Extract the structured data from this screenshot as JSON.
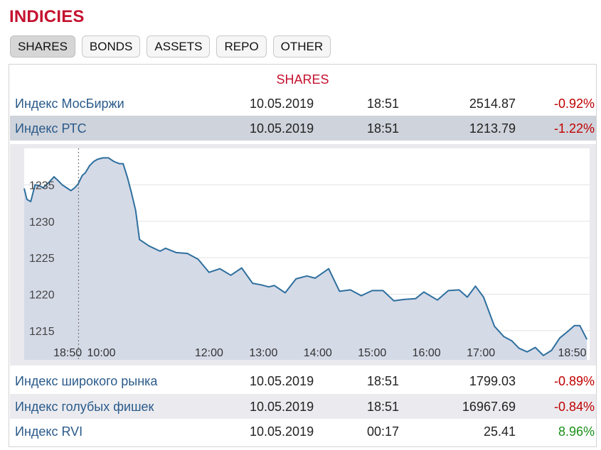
{
  "page": {
    "title": "INDICIES"
  },
  "tabs": [
    {
      "label": "SHARES",
      "active": true
    },
    {
      "label": "BONDS",
      "active": false
    },
    {
      "label": "ASSETS",
      "active": false
    },
    {
      "label": "REPO",
      "active": false
    },
    {
      "label": "OTHER",
      "active": false
    }
  ],
  "section": {
    "title": "SHARES"
  },
  "rows_top": [
    {
      "name": "Индекс МосБиржи",
      "date": "10.05.2019",
      "time": "18:51",
      "value": "2514.87",
      "change": "-0.92%",
      "sign": "neg"
    },
    {
      "name": "Индекс РТС",
      "date": "10.05.2019",
      "time": "18:51",
      "value": "1213.79",
      "change": "-1.22%",
      "sign": "neg"
    }
  ],
  "rows_bottom": [
    {
      "name": "Индекс широкого рынка",
      "date": "10.05.2019",
      "time": "18:51",
      "value": "1799.03",
      "change": "-0.89%",
      "sign": "neg"
    },
    {
      "name": "Индекс голубых фишек",
      "date": "10.05.2019",
      "time": "18:51",
      "value": "16967.69",
      "change": "-0.84%",
      "sign": "neg"
    },
    {
      "name": "Индекс RVI",
      "date": "10.05.2019",
      "time": "00:17",
      "value": "25.41",
      "change": "8.96%",
      "sign": "pos"
    }
  ],
  "colors": {
    "accent": "#c4122f",
    "line": "#2e6f9e",
    "area": "#d3d8e6",
    "negative": "#c00000",
    "positive": "#1a8f1a"
  },
  "chart_data": {
    "type": "area",
    "title": "",
    "xlabel": "",
    "ylabel": "",
    "ylim": [
      1211,
      1240
    ],
    "grid": true,
    "y_ticks": [
      1215,
      1220,
      1225,
      1230,
      1235
    ],
    "x_ticks": [
      {
        "label": "18:50",
        "x": 0.8
      },
      {
        "label": "10:00",
        "x": 1.42
      },
      {
        "label": "12:00",
        "x": 3.4
      },
      {
        "label": "13:00",
        "x": 4.4
      },
      {
        "label": "14:00",
        "x": 5.4
      },
      {
        "label": "15:00",
        "x": 6.4
      },
      {
        "label": "16:00",
        "x": 7.4
      },
      {
        "label": "17:00",
        "x": 8.4
      },
      {
        "label": "18:50",
        "x": 10.08
      }
    ],
    "session_marker_x": 1.0,
    "series": [
      {
        "x": [
          0,
          0.05,
          0.12,
          0.2,
          0.27,
          0.35,
          0.45,
          0.55,
          0.62,
          0.7,
          0.78,
          0.86,
          0.93,
          0.99,
          1.03,
          1.07,
          1.12,
          1.17,
          1.2,
          1.28,
          1.35,
          1.45,
          1.55,
          1.65,
          1.75,
          1.82,
          1.9,
          1.97,
          2.05,
          2.12,
          2.3,
          2.5,
          2.6,
          2.8,
          3.0,
          3.2,
          3.4,
          3.6,
          3.8,
          4.0,
          4.2,
          4.35,
          4.5,
          4.6,
          4.8,
          5.0,
          5.2,
          5.35,
          5.6,
          5.8,
          6.0,
          6.2,
          6.4,
          6.6,
          6.8,
          7.0,
          7.2,
          7.35,
          7.6,
          7.8,
          8.0,
          8.15,
          8.3,
          8.45,
          8.65,
          8.82,
          8.97,
          9.1,
          9.25,
          9.4,
          9.55,
          9.7,
          9.85,
          10.0,
          10.12,
          10.22,
          10.35
        ],
        "y": [
          1234.5,
          1233.0,
          1232.7,
          1235.0,
          1234.9,
          1234.6,
          1235.3,
          1236.1,
          1235.6,
          1235.0,
          1234.6,
          1234.2,
          1234.6,
          1235.1,
          1235.7,
          1236.3,
          1236.6,
          1237.2,
          1237.6,
          1238.2,
          1238.5,
          1238.7,
          1238.7,
          1238.2,
          1237.9,
          1237.9,
          1236.0,
          1234.0,
          1231.5,
          1227.5,
          1226.6,
          1225.9,
          1226.3,
          1225.7,
          1225.6,
          1224.8,
          1223.0,
          1223.5,
          1222.6,
          1223.6,
          1221.5,
          1221.3,
          1221.0,
          1221.2,
          1220.2,
          1222.1,
          1222.5,
          1222.2,
          1223.5,
          1220.4,
          1220.6,
          1219.8,
          1220.5,
          1220.5,
          1219.1,
          1219.3,
          1219.4,
          1220.3,
          1219.2,
          1220.5,
          1220.6,
          1219.6,
          1221.1,
          1219.6,
          1215.6,
          1214.2,
          1213.6,
          1212.6,
          1212.1,
          1212.7,
          1211.6,
          1212.3,
          1214.0,
          1214.9,
          1215.7,
          1215.7,
          1213.8
        ]
      }
    ]
  }
}
